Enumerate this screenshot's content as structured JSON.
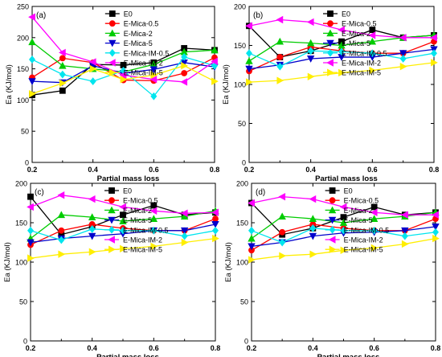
{
  "chart_data": [
    {
      "type": "line",
      "panel_label": "(a)",
      "xlabel": "Partial mass loss",
      "ylabel": "Ea (KJ/mol)",
      "xlim": [
        0.2,
        0.8
      ],
      "ylim": [
        0,
        250
      ],
      "xticks": [
        "0.2",
        "0.4",
        "0.6",
        "0.8"
      ],
      "yticks": [
        "0",
        "50",
        "100",
        "150",
        "200",
        "250"
      ],
      "legend_position": "top-right",
      "x": [
        0.2,
        0.3,
        0.4,
        0.5,
        0.6,
        0.7,
        0.8
      ],
      "series": [
        {
          "name": "E0",
          "color": "#000000",
          "marker": "square",
          "values": [
            108,
            115,
            157,
            156,
            160,
            183,
            180
          ]
        },
        {
          "name": "E-Mica-0.5",
          "color": "#ff0000",
          "marker": "circle",
          "values": [
            136,
            167,
            160,
            132,
            131,
            143,
            168
          ]
        },
        {
          "name": "E-Mica-2",
          "color": "#00cc00",
          "marker": "triangle-up",
          "values": [
            193,
            155,
            150,
            145,
            157,
            177,
            180
          ]
        },
        {
          "name": "E-Mica-5",
          "color": "#0000cc",
          "marker": "triangle-down",
          "values": [
            130,
            128,
            155,
            143,
            149,
            160,
            153
          ]
        },
        {
          "name": "E-Mica-IM-0.5",
          "color": "#00e5ee",
          "marker": "diamond",
          "values": [
            165,
            141,
            130,
            147,
            106,
            169,
            155
          ]
        },
        {
          "name": "E-Mica-IM-2",
          "color": "#ff00ff",
          "marker": "triangle-left",
          "values": [
            233,
            176,
            161,
            140,
            133,
            129,
            162
          ]
        },
        {
          "name": "E-Mica-IM-5",
          "color": "#ffee00",
          "marker": "triangle-right",
          "values": [
            110,
            127,
            150,
            133,
            140,
            155,
            130
          ]
        }
      ]
    },
    {
      "type": "line",
      "panel_label": "(b)",
      "xlabel": "Partial mass loss",
      "ylabel": "Ea (KJ/mol)",
      "xlim": [
        0.2,
        0.8
      ],
      "ylim": [
        0,
        200
      ],
      "xticks": [
        "0.2",
        "0.4",
        "0.6",
        "0.8"
      ],
      "yticks": [
        "0",
        "50",
        "100",
        "150",
        "200"
      ],
      "legend_position": "top-right",
      "x": [
        0.2,
        0.3,
        0.4,
        0.5,
        0.6,
        0.7,
        0.8
      ],
      "series": [
        {
          "name": "E0",
          "color": "#000000",
          "marker": "square",
          "values": [
            175,
            135,
            143,
            155,
            170,
            160,
            163
          ]
        },
        {
          "name": "E-Mica-0.5",
          "color": "#ff0000",
          "marker": "circle",
          "values": [
            117,
            135,
            148,
            143,
            140,
            140,
            155
          ]
        },
        {
          "name": "E-Mica-2",
          "color": "#00cc00",
          "marker": "triangle-up",
          "values": [
            130,
            155,
            153,
            150,
            155,
            160,
            163
          ]
        },
        {
          "name": "E-Mica-5",
          "color": "#0000cc",
          "marker": "triangle-down",
          "values": [
            120,
            125,
            133,
            135,
            135,
            140,
            145
          ]
        },
        {
          "name": "E-Mica-IM-0.5",
          "color": "#00e5ee",
          "marker": "diamond",
          "values": [
            140,
            123,
            143,
            142,
            140,
            133,
            140
          ]
        },
        {
          "name": "E-Mica-IM-2",
          "color": "#ff00ff",
          "marker": "triangle-left",
          "values": [
            175,
            183,
            180,
            170,
            163,
            160,
            160
          ]
        },
        {
          "name": "E-Mica-IM-5",
          "color": "#ffee00",
          "marker": "triangle-right",
          "values": [
            103,
            105,
            110,
            115,
            118,
            123,
            128
          ]
        }
      ]
    },
    {
      "type": "line",
      "panel_label": "(c)",
      "xlabel": "Partial mass loss",
      "ylabel": "Ea (KJ/mol)",
      "xlim": [
        0.2,
        0.8
      ],
      "ylim": [
        0,
        200
      ],
      "xticks": [
        "0.2",
        "0.4",
        "0.6",
        "0.8"
      ],
      "yticks": [
        "0",
        "50",
        "100",
        "150",
        "200"
      ],
      "legend_position": "top-right",
      "x": [
        0.2,
        0.3,
        0.4,
        0.5,
        0.6,
        0.7,
        0.8
      ],
      "series": [
        {
          "name": "E0",
          "color": "#000000",
          "marker": "square",
          "values": [
            183,
            135,
            145,
            160,
            172,
            160,
            163
          ]
        },
        {
          "name": "E-Mica-0.5",
          "color": "#ff0000",
          "marker": "circle",
          "values": [
            122,
            140,
            148,
            143,
            140,
            140,
            155
          ]
        },
        {
          "name": "E-Mica-2",
          "color": "#00cc00",
          "marker": "triangle-up",
          "values": [
            130,
            160,
            157,
            152,
            155,
            158,
            165
          ]
        },
        {
          "name": "E-Mica-5",
          "color": "#0000cc",
          "marker": "triangle-down",
          "values": [
            125,
            130,
            133,
            136,
            140,
            140,
            148
          ]
        },
        {
          "name": "E-Mica-IM-0.5",
          "color": "#00e5ee",
          "marker": "diamond",
          "values": [
            140,
            128,
            142,
            140,
            140,
            133,
            140
          ]
        },
        {
          "name": "E-Mica-IM-2",
          "color": "#ff00ff",
          "marker": "triangle-left",
          "values": [
            170,
            185,
            180,
            170,
            165,
            162,
            163
          ]
        },
        {
          "name": "E-Mica-IM-5",
          "color": "#ffee00",
          "marker": "triangle-right",
          "values": [
            105,
            110,
            113,
            117,
            120,
            125,
            130
          ]
        }
      ]
    },
    {
      "type": "line",
      "panel_label": "(d)",
      "xlabel": "Partial mass loss",
      "ylabel": "Ea (KJ/mol)",
      "xlim": [
        0.2,
        0.8
      ],
      "ylim": [
        0,
        200
      ],
      "xticks": [
        "0.2",
        "0.4",
        "0.6",
        "0.8"
      ],
      "yticks": [
        "0",
        "50",
        "100",
        "150",
        "200"
      ],
      "legend_position": "top-right",
      "x": [
        0.2,
        0.3,
        0.4,
        0.5,
        0.6,
        0.7,
        0.8
      ],
      "series": [
        {
          "name": "E0",
          "color": "#000000",
          "marker": "square",
          "values": [
            175,
            135,
            143,
            157,
            170,
            160,
            163
          ]
        },
        {
          "name": "E-Mica-0.5",
          "color": "#ff0000",
          "marker": "circle",
          "values": [
            115,
            138,
            148,
            143,
            140,
            140,
            155
          ]
        },
        {
          "name": "E-Mica-2",
          "color": "#00cc00",
          "marker": "triangle-up",
          "values": [
            130,
            158,
            155,
            150,
            155,
            158,
            163
          ]
        },
        {
          "name": "E-Mica-5",
          "color": "#0000cc",
          "marker": "triangle-down",
          "values": [
            120,
            125,
            133,
            137,
            138,
            140,
            145
          ]
        },
        {
          "name": "E-Mica-IM-0.5",
          "color": "#00e5ee",
          "marker": "diamond",
          "values": [
            140,
            125,
            143,
            140,
            140,
            133,
            138
          ]
        },
        {
          "name": "E-Mica-IM-2",
          "color": "#ff00ff",
          "marker": "triangle-left",
          "values": [
            175,
            183,
            180,
            170,
            163,
            160,
            160
          ]
        },
        {
          "name": "E-Mica-IM-5",
          "color": "#ffee00",
          "marker": "triangle-right",
          "values": [
            103,
            108,
            110,
            115,
            118,
            123,
            130
          ]
        }
      ]
    }
  ]
}
